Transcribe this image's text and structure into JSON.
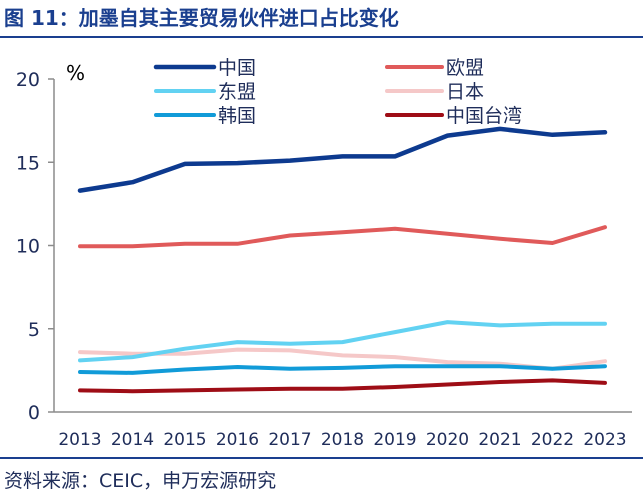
{
  "figure": {
    "title": "图 11：加墨自其主要贸易伙伴进口占比变化",
    "source": "资料来源：CEIC，申万宏源研究"
  },
  "chart_data": {
    "type": "line",
    "ylabel": "%",
    "ylim": [
      0,
      20
    ],
    "yticks": [
      "0",
      "5",
      "10",
      "15",
      "20"
    ],
    "grid": false,
    "legend_position": "top",
    "categories": [
      "2013",
      "2014",
      "2015",
      "2016",
      "2017",
      "2018",
      "2019",
      "2020",
      "2021",
      "2022",
      "2023"
    ],
    "series": [
      {
        "name": "中国",
        "color": "#0d3a8f",
        "width": 4.5,
        "values": [
          13.3,
          13.8,
          14.9,
          14.95,
          15.1,
          15.35,
          15.35,
          16.6,
          17.0,
          16.65,
          16.8
        ]
      },
      {
        "name": "欧盟",
        "color": "#e05a5a",
        "width": 4,
        "values": [
          9.95,
          9.95,
          10.1,
          10.1,
          10.6,
          10.8,
          11.0,
          10.7,
          10.4,
          10.15,
          11.1
        ]
      },
      {
        "name": "东盟",
        "color": "#62d2f2",
        "width": 4,
        "values": [
          3.1,
          3.3,
          3.8,
          4.2,
          4.1,
          4.2,
          4.8,
          5.4,
          5.2,
          5.3,
          5.3
        ]
      },
      {
        "name": "日本",
        "color": "#f5c8c8",
        "width": 4,
        "values": [
          3.6,
          3.5,
          3.5,
          3.75,
          3.7,
          3.4,
          3.3,
          3.0,
          2.9,
          2.6,
          3.05
        ]
      },
      {
        "name": "韩国",
        "color": "#119bd8",
        "width": 4,
        "values": [
          2.4,
          2.35,
          2.55,
          2.7,
          2.6,
          2.65,
          2.75,
          2.75,
          2.75,
          2.6,
          2.75
        ]
      },
      {
        "name": "中国台湾",
        "color": "#9e0d16",
        "width": 4,
        "values": [
          1.3,
          1.25,
          1.3,
          1.35,
          1.4,
          1.4,
          1.5,
          1.65,
          1.8,
          1.9,
          1.75
        ]
      }
    ]
  }
}
